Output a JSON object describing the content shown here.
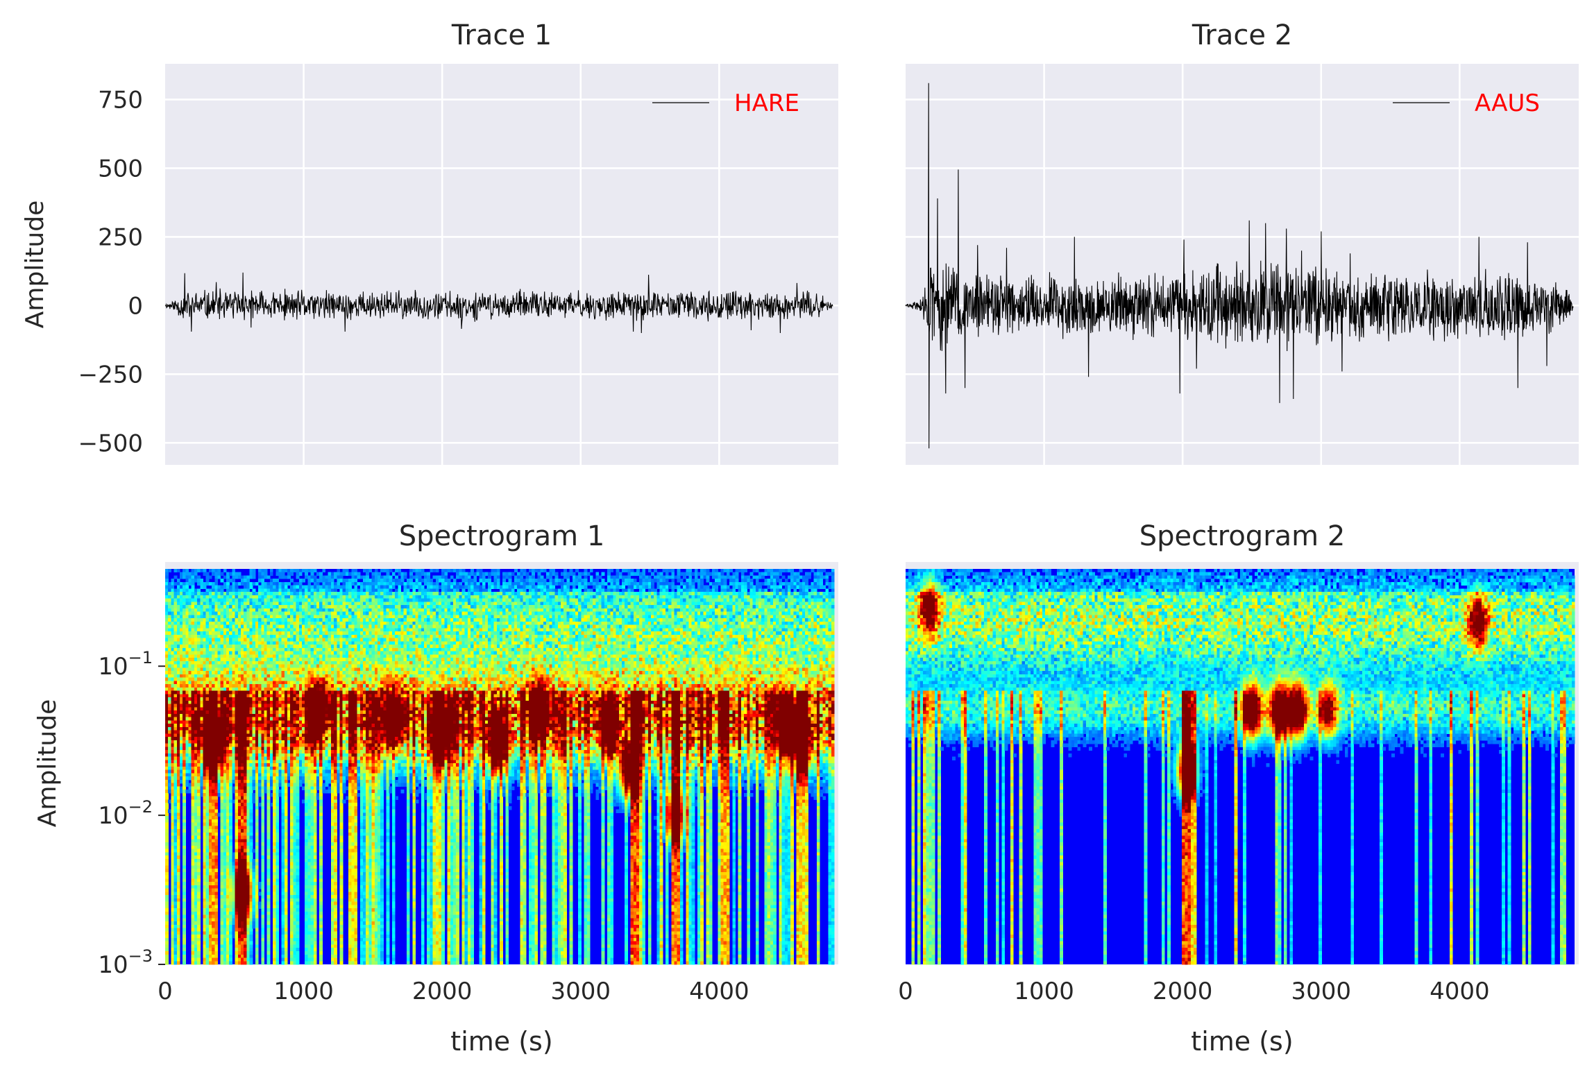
{
  "colors": {
    "axes_face": "#EAEAF2",
    "grid": "#FFFFFF",
    "text": "#262626",
    "trace_line": "#000000",
    "legend_text": "#FF0000",
    "colormap": "jet"
  },
  "chart_data": [
    {
      "type": "line",
      "title": "Trace 1",
      "ylabel": "Amplitude",
      "xlabel": "",
      "xlim": [
        0,
        4860
      ],
      "ylim": [
        -580,
        880
      ],
      "xticks": [
        1000,
        2000,
        3000,
        4000
      ],
      "yticks": [
        -500,
        -250,
        0,
        250,
        500,
        750
      ],
      "ytick_labels": [
        "−500",
        "−250",
        "0",
        "250",
        "500",
        "750"
      ],
      "grid": true,
      "legend": {
        "placement": "top-right",
        "label": "HARE"
      },
      "series": [
        {
          "name": "HARE",
          "x_start": 0,
          "x_end": 4820,
          "n": 1400,
          "seed": 11,
          "envelope": [
            [
              0,
              5
            ],
            [
              60,
              20
            ],
            [
              130,
              45
            ],
            [
              300,
              45
            ],
            [
              2000,
              42
            ],
            [
              3500,
              42
            ],
            [
              4700,
              40
            ],
            [
              4800,
              12
            ],
            [
              4820,
              3
            ]
          ],
          "peaks": [
            [
              140,
              118
            ],
            [
              190,
              -95
            ],
            [
              370,
              85
            ],
            [
              560,
              120
            ],
            [
              620,
              -80
            ],
            [
              1300,
              -95
            ],
            [
              2140,
              -85
            ],
            [
              3380,
              -95
            ],
            [
              3440,
              -100
            ],
            [
              3490,
              112
            ],
            [
              4230,
              -90
            ],
            [
              4440,
              -100
            ],
            [
              4560,
              82
            ]
          ]
        }
      ]
    },
    {
      "type": "line",
      "title": "Trace 2",
      "ylabel": "",
      "xlabel": "",
      "xlim": [
        0,
        4860
      ],
      "ylim": [
        -580,
        880
      ],
      "xticks": [
        1000,
        2000,
        3000,
        4000
      ],
      "yticks": [
        -500,
        -250,
        0,
        250,
        500,
        750
      ],
      "grid": true,
      "legend": {
        "placement": "top-right",
        "label": "AAUS"
      },
      "series": [
        {
          "name": "AAUS",
          "x_start": 0,
          "x_end": 4820,
          "n": 1800,
          "seed": 29,
          "envelope": [
            [
              0,
              3
            ],
            [
              120,
              20
            ],
            [
              150,
              130
            ],
            [
              300,
              120
            ],
            [
              600,
              95
            ],
            [
              1500,
              85
            ],
            [
              2000,
              95
            ],
            [
              2200,
              125
            ],
            [
              2700,
              135
            ],
            [
              3100,
              100
            ],
            [
              4000,
              95
            ],
            [
              4500,
              95
            ],
            [
              4760,
              60
            ],
            [
              4820,
              10
            ]
          ],
          "peaks": [
            [
              165,
              810
            ],
            [
              168,
              -520
            ],
            [
              230,
              390
            ],
            [
              290,
              -320
            ],
            [
              380,
              495
            ],
            [
              430,
              -300
            ],
            [
              520,
              220
            ],
            [
              730,
              210
            ],
            [
              1220,
              250
            ],
            [
              1320,
              -260
            ],
            [
              1980,
              -320
            ],
            [
              2010,
              240
            ],
            [
              2100,
              -230
            ],
            [
              2480,
              310
            ],
            [
              2600,
              300
            ],
            [
              2700,
              -355
            ],
            [
              2750,
              280
            ],
            [
              2800,
              -340
            ],
            [
              2860,
              200
            ],
            [
              3000,
              270
            ],
            [
              3150,
              -240
            ],
            [
              3210,
              190
            ],
            [
              4140,
              250
            ],
            [
              4420,
              -300
            ],
            [
              4490,
              230
            ],
            [
              4630,
              -220
            ]
          ]
        }
      ]
    },
    {
      "type": "heatmap",
      "title": "Spectrogram 1",
      "ylabel": "Amplitude",
      "xlabel": "time (s)",
      "xlim": [
        0,
        4860
      ],
      "ylim": [
        0.001,
        0.5
      ],
      "yscale": "log",
      "xticks": [
        0,
        1000,
        2000,
        3000,
        4000
      ],
      "ytick_labels": [
        {
          "base": "10",
          "exp": "−3",
          "value": 0.001
        },
        {
          "base": "10",
          "exp": "−2",
          "value": 0.01
        },
        {
          "base": "10",
          "exp": "−1",
          "value": 0.1
        }
      ],
      "grid": false,
      "columns": 230,
      "rows": 120,
      "seed": 7,
      "data_xlim": [
        0,
        4830
      ],
      "data_ylim": [
        0.001,
        0.45
      ],
      "bands": [
        {
          "center": 0.045,
          "width_decades": 0.32,
          "strength": 0.75
        },
        {
          "center": 0.18,
          "width_decades": 0.45,
          "strength": 0.45
        }
      ],
      "hotspots": [
        {
          "x": 350,
          "y": 0.03,
          "strength": 1.0
        },
        {
          "x": 560,
          "y": 0.003,
          "strength": 0.9
        },
        {
          "x": 1100,
          "y": 0.05,
          "strength": 0.95
        },
        {
          "x": 1650,
          "y": 0.045,
          "strength": 0.95
        },
        {
          "x": 2000,
          "y": 0.035,
          "strength": 0.9
        },
        {
          "x": 2400,
          "y": 0.03,
          "strength": 0.95
        },
        {
          "x": 2700,
          "y": 0.05,
          "strength": 1.0
        },
        {
          "x": 3200,
          "y": 0.04,
          "strength": 0.9
        },
        {
          "x": 3350,
          "y": 0.02,
          "strength": 0.95
        },
        {
          "x": 3680,
          "y": 0.01,
          "strength": 0.9
        },
        {
          "x": 4480,
          "y": 0.04,
          "strength": 0.95
        },
        {
          "x": 4600,
          "y": 0.03,
          "strength": 0.85
        }
      ],
      "streaks": [
        {
          "x": 350,
          "strength": 0.85
        },
        {
          "x": 560,
          "strength": 1.0
        },
        {
          "x": 1350,
          "strength": 0.7
        },
        {
          "x": 3390,
          "strength": 0.95
        },
        {
          "x": 3680,
          "strength": 0.9
        },
        {
          "x": 4040,
          "strength": 0.8
        },
        {
          "x": 4580,
          "strength": 0.75
        }
      ],
      "streak_density": 0.55
    },
    {
      "type": "heatmap",
      "title": "Spectrogram 2",
      "ylabel": "",
      "xlabel": "time (s)",
      "xlim": [
        0,
        4860
      ],
      "ylim": [
        0.001,
        0.5
      ],
      "yscale": "log",
      "xticks": [
        0,
        1000,
        2000,
        3000,
        4000
      ],
      "grid": false,
      "columns": 230,
      "rows": 120,
      "seed": 19,
      "data_xlim": [
        0,
        4830
      ],
      "data_ylim": [
        0.001,
        0.45
      ],
      "bands": [
        {
          "center": 0.2,
          "width_decades": 0.4,
          "strength": 0.5
        },
        {
          "center": 0.05,
          "width_decades": 0.18,
          "strength": 0.3
        }
      ],
      "hotspots": [
        {
          "x": 2500,
          "y": 0.05,
          "strength": 1.0
        },
        {
          "x": 2700,
          "y": 0.05,
          "strength": 1.0
        },
        {
          "x": 2830,
          "y": 0.05,
          "strength": 0.95
        },
        {
          "x": 3050,
          "y": 0.05,
          "strength": 0.7
        },
        {
          "x": 2030,
          "y": 0.02,
          "strength": 1.0
        },
        {
          "x": 170,
          "y": 0.25,
          "strength": 0.8
        },
        {
          "x": 4130,
          "y": 0.2,
          "strength": 0.7
        }
      ],
      "streaks": [
        {
          "x": 2030,
          "strength": 1.0
        },
        {
          "x": 2080,
          "strength": 0.75
        },
        {
          "x": 950,
          "strength": 0.45
        },
        {
          "x": 170,
          "strength": 0.5
        }
      ],
      "streak_density": 0.18
    }
  ]
}
